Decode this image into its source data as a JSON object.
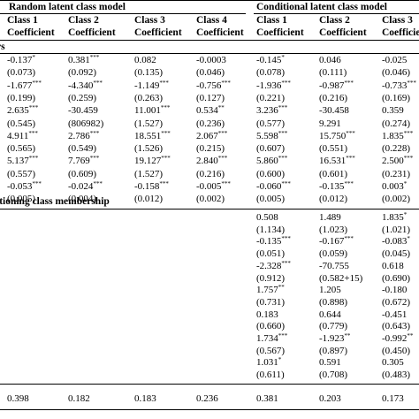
{
  "headers": {
    "group_random": "Random latent class model",
    "group_conditional": "Conditional latent class model",
    "random_classes": [
      "Class 1",
      "Class 2",
      "Class 3",
      "Class 4"
    ],
    "conditional_classes": [
      "Class 1",
      "Class 2",
      "Class 3"
    ],
    "coef_label": "Coefficient"
  },
  "sections": {
    "upper": "rs",
    "lower": "itioning class membership"
  },
  "upper_rows": [
    {
      "random": [
        [
          "-0.137",
          "*"
        ],
        [
          "0.381",
          "***"
        ],
        [
          "0.082",
          ""
        ],
        [
          "-0.0003",
          ""
        ]
      ],
      "conditional": [
        [
          "-0.145",
          "*"
        ],
        [
          "0.046",
          ""
        ],
        [
          "-0.025",
          ""
        ]
      ]
    },
    {
      "random": [
        [
          "(0.073)",
          ""
        ],
        [
          "(0.092)",
          ""
        ],
        [
          "(0.135)",
          ""
        ],
        [
          "(0.046)",
          ""
        ]
      ],
      "conditional": [
        [
          "(0.078)",
          ""
        ],
        [
          "(0.111)",
          ""
        ],
        [
          "(0.046)",
          ""
        ]
      ]
    },
    {
      "random": [
        [
          "-1.677",
          "***"
        ],
        [
          "-4.340",
          "***"
        ],
        [
          "-1.149",
          "***"
        ],
        [
          "-0.756",
          "***"
        ]
      ],
      "conditional": [
        [
          "-1.936",
          "***"
        ],
        [
          "-0.987",
          "***"
        ],
        [
          "-0.733",
          "***"
        ]
      ]
    },
    {
      "random": [
        [
          "(0.199)",
          ""
        ],
        [
          "(0.259)",
          ""
        ],
        [
          "(0.263)",
          ""
        ],
        [
          "(0.127)",
          ""
        ]
      ],
      "conditional": [
        [
          "(0.221)",
          ""
        ],
        [
          "(0.216)",
          ""
        ],
        [
          "(0.169)",
          ""
        ]
      ]
    },
    {
      "random": [
        [
          "2.635",
          "***"
        ],
        [
          "-30.459",
          ""
        ],
        [
          "11.001",
          "***"
        ],
        [
          "0.534",
          "**"
        ]
      ],
      "conditional": [
        [
          "3.236",
          "***"
        ],
        [
          "-30.458",
          ""
        ],
        [
          "0.359",
          ""
        ]
      ]
    },
    {
      "random": [
        [
          "(0.545)",
          ""
        ],
        [
          "(806982)",
          ""
        ],
        [
          "(1.527)",
          ""
        ],
        [
          "(0.236)",
          ""
        ]
      ],
      "conditional": [
        [
          "(0.577)",
          ""
        ],
        [
          "9.291",
          ""
        ],
        [
          "(0.274)",
          ""
        ]
      ]
    },
    {
      "random": [
        [
          "4.911",
          "***"
        ],
        [
          "2.786",
          "***"
        ],
        [
          "18.551",
          "***"
        ],
        [
          "2.067",
          "***"
        ]
      ],
      "conditional": [
        [
          "5.598",
          "***"
        ],
        [
          "15.750",
          "***"
        ],
        [
          "1.835",
          "***"
        ]
      ]
    },
    {
      "random": [
        [
          "(0.565)",
          ""
        ],
        [
          "(0.549)",
          ""
        ],
        [
          "(1.526)",
          ""
        ],
        [
          "(0.215)",
          ""
        ]
      ],
      "conditional": [
        [
          "(0.607)",
          ""
        ],
        [
          "(0.551)",
          ""
        ],
        [
          "(0.228)",
          ""
        ]
      ]
    },
    {
      "random": [
        [
          "5.137",
          "***"
        ],
        [
          "7.769",
          "***"
        ],
        [
          "19.127",
          "***"
        ],
        [
          "2.840",
          "***"
        ]
      ],
      "conditional": [
        [
          "5.860",
          "***"
        ],
        [
          "16.531",
          "***"
        ],
        [
          "2.500",
          "***"
        ]
      ]
    },
    {
      "random": [
        [
          "(0.557)",
          ""
        ],
        [
          "(0.609)",
          ""
        ],
        [
          "(1.527)",
          ""
        ],
        [
          "(0.216)",
          ""
        ]
      ],
      "conditional": [
        [
          "(0.600)",
          ""
        ],
        [
          "(0.601)",
          ""
        ],
        [
          "(0.231)",
          ""
        ]
      ]
    },
    {
      "random": [
        [
          "-0.053",
          "***"
        ],
        [
          "-0.024",
          "***"
        ],
        [
          "-0.158",
          "***"
        ],
        [
          "-0.005",
          "***"
        ]
      ],
      "conditional": [
        [
          "-0.060",
          "***"
        ],
        [
          "-0.135",
          "***"
        ],
        [
          "0.003",
          "*"
        ]
      ]
    },
    {
      "random": [
        [
          "(0.005)",
          ""
        ],
        [
          "(0.004)",
          ""
        ],
        [
          "(0.012)",
          ""
        ],
        [
          "(0.002)",
          ""
        ]
      ],
      "conditional": [
        [
          "(0.005)",
          ""
        ],
        [
          "(0.012)",
          ""
        ],
        [
          "(0.002)",
          ""
        ]
      ]
    }
  ],
  "lower_rows": [
    [
      [
        "0.508",
        ""
      ],
      [
        "1.489",
        ""
      ],
      [
        "1.835",
        "*"
      ]
    ],
    [
      [
        "(1.134)",
        ""
      ],
      [
        "(1.023)",
        ""
      ],
      [
        "(1.021)",
        ""
      ]
    ],
    [
      [
        "-0.135",
        "***"
      ],
      [
        "-0.167",
        "***"
      ],
      [
        "-0.083",
        "*"
      ]
    ],
    [
      [
        "(0.051)",
        ""
      ],
      [
        "(0.059)",
        ""
      ],
      [
        "(0.045)",
        ""
      ]
    ],
    [
      [
        "-2.328",
        "***"
      ],
      [
        "-70.755",
        ""
      ],
      [
        "0.618",
        ""
      ]
    ],
    [
      [
        "(0.912)",
        ""
      ],
      [
        "(0.582+15)",
        ""
      ],
      [
        "(0.690)",
        ""
      ]
    ],
    [
      [
        "1.757",
        "**"
      ],
      [
        "1.205",
        ""
      ],
      [
        "-0.180",
        ""
      ]
    ],
    [
      [
        "(0.731)",
        ""
      ],
      [
        "(0.898)",
        ""
      ],
      [
        "(0.672)",
        ""
      ]
    ],
    [
      [
        "0.183",
        ""
      ],
      [
        "0.644",
        ""
      ],
      [
        "-0.451",
        ""
      ]
    ],
    [
      [
        "(0.660)",
        ""
      ],
      [
        "(0.779)",
        ""
      ],
      [
        "(0.643)",
        ""
      ]
    ],
    [
      [
        "1.734",
        "***"
      ],
      [
        "-1.923",
        "**"
      ],
      [
        "-0.992",
        "**"
      ]
    ],
    [
      [
        "(0.567)",
        ""
      ],
      [
        "(0.897)",
        ""
      ],
      [
        "(0.450)",
        ""
      ]
    ],
    [
      [
        "1.031",
        "*"
      ],
      [
        "0.591",
        ""
      ],
      [
        "0.305",
        ""
      ]
    ],
    [
      [
        "(0.611)",
        ""
      ],
      [
        "(0.708)",
        ""
      ],
      [
        "(0.483)",
        ""
      ]
    ]
  ],
  "footer_row": {
    "random": [
      "0.398",
      "0.182",
      "0.183",
      "0.236"
    ],
    "conditional": [
      "0.381",
      "0.203",
      "0.173"
    ]
  }
}
